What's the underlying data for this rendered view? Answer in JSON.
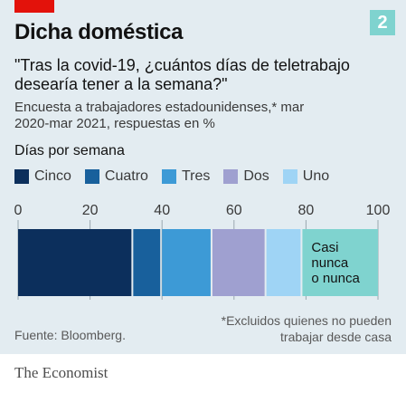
{
  "header": {
    "title": "Dicha doméstica",
    "subtitle": "\"Tras la covid-19, ¿cuántos días de teletrabajo desearía tener a la semana?\"",
    "note": "Encuesta a trabajadores estadounidenses,* mar 2020-mar 2021, respuestas en %",
    "badge": "2"
  },
  "legend": {
    "title": "Días por semana",
    "items": [
      {
        "label": "Cinco",
        "color": "#0c2f5c"
      },
      {
        "label": "Cuatro",
        "color": "#18609c"
      },
      {
        "label": "Tres",
        "color": "#3d9ad6"
      },
      {
        "label": "Dos",
        "color": "#9fa0d0"
      },
      {
        "label": "Uno",
        "color": "#9fd4f5"
      }
    ]
  },
  "chart_data": {
    "type": "bar",
    "orientation": "horizontal",
    "stacked": true,
    "xlim": [
      0,
      100
    ],
    "xticks": [
      0,
      20,
      40,
      60,
      80,
      100
    ],
    "segments": [
      {
        "name": "Cinco",
        "value": 32,
        "color": "#0c2f5c"
      },
      {
        "name": "Cuatro",
        "value": 8,
        "color": "#18609c"
      },
      {
        "name": "Tres",
        "value": 14,
        "color": "#3d9ad6"
      },
      {
        "name": "Dos",
        "value": 15,
        "color": "#9fa0d0"
      },
      {
        "name": "Uno",
        "value": 10,
        "color": "#9fd4f5"
      },
      {
        "name": "Casi nunca o nunca",
        "value": 21,
        "color": "#7fd3cf",
        "label_lines": [
          "Casi",
          "nunca",
          "o nunca"
        ]
      }
    ]
  },
  "footer": {
    "source": "Fuente: Bloomberg.",
    "footnote": "*Excluidos quienes no pueden trabajar desde casa",
    "brand": "The Economist"
  }
}
